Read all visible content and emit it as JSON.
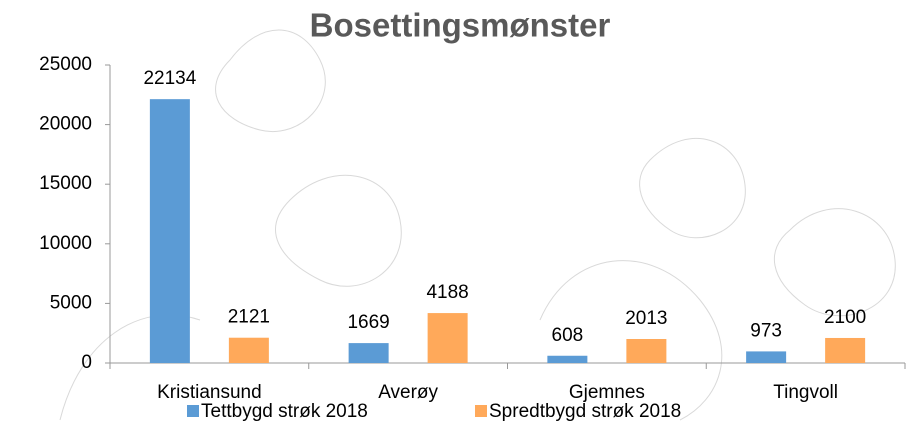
{
  "chart_data": {
    "type": "bar",
    "title": "Bosettingsmønster",
    "categories": [
      "Kristiansund",
      "Averøy",
      "Gjemnes",
      "Tingvoll"
    ],
    "series": [
      {
        "name": "Tettbygd strøk 2018",
        "color": "#5b9bd5",
        "values": [
          22134,
          1669,
          608,
          973
        ]
      },
      {
        "name": "Spredtbygd strøk 2018",
        "color": "#ffa95a",
        "values": [
          2121,
          4188,
          2013,
          2100
        ]
      }
    ],
    "ylim": [
      0,
      25000
    ],
    "yticks": [
      0,
      5000,
      10000,
      15000,
      20000,
      25000
    ],
    "grid": false,
    "data_labels": true,
    "legend": "bottom"
  }
}
